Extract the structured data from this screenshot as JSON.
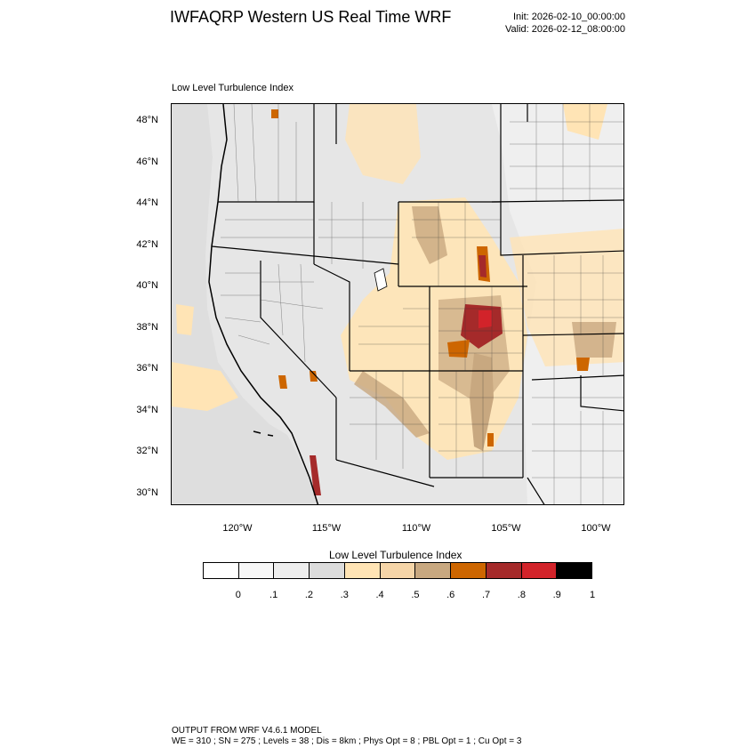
{
  "header": {
    "title": "IWFAQRP Western US Real Time WRF",
    "init": "Init: 2026-02-10_00:00:00",
    "valid": "Valid: 2026-02-12_08:00:00"
  },
  "map": {
    "subtitle": "Low Level Turbulence Index",
    "lat_labels": [
      "48°N",
      "46°N",
      "44°N",
      "42°N",
      "40°N",
      "38°N",
      "36°N",
      "34°N",
      "32°N",
      "30°N"
    ],
    "lon_labels": [
      "120°W",
      "115°W",
      "110°W",
      "105°W",
      "100°W"
    ]
  },
  "colorbar": {
    "title": "Low Level Turbulence Index",
    "colors": [
      "#ffffff",
      "#f7f7f7",
      "#eeeeee",
      "#dcdcdc",
      "#ffe4b5",
      "#f5d5a8",
      "#c8a880",
      "#cd6600",
      "#a52a2a",
      "#d2232a",
      "#000000"
    ],
    "ticks": [
      "0",
      ".1",
      ".2",
      ".3",
      ".4",
      ".5",
      ".6",
      ".7",
      ".8",
      ".9",
      "1"
    ]
  },
  "footer": {
    "line1": "OUTPUT FROM WRF V4.6.1 MODEL",
    "line2": "WE = 310 ; SN = 275 ; Levels = 38 ; Dis = 8km ; Phys Opt = 8 ; PBL Opt = 1 ; Cu Opt = 3"
  }
}
